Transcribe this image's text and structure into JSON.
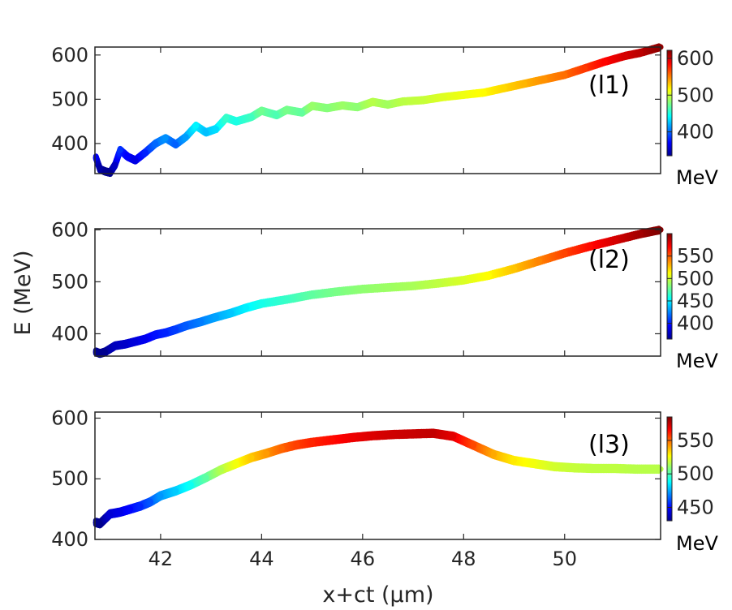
{
  "chart_data": {
    "type": "scatter",
    "xlabel": "x+ct (μm)",
    "ylabel": "E (MeV)",
    "xlim": [
      40.7,
      51.9
    ],
    "xticks": [
      42,
      44,
      46,
      48,
      50
    ],
    "xtick_labels": [
      "42",
      "44",
      "46",
      "48",
      "50"
    ],
    "panels": [
      {
        "label": "(l1)",
        "ylim": [
          332,
          618
        ],
        "yticks": [
          400,
          500,
          600
        ],
        "ytick_labels": [
          "400",
          "500",
          "600"
        ],
        "colorbar": {
          "min": 335,
          "max": 622,
          "ticks": [
            400,
            500,
            600
          ],
          "tick_labels": [
            "400",
            "500",
            "600"
          ],
          "unit": "MeV"
        },
        "x": [
          40.72,
          40.8,
          40.9,
          41.0,
          41.1,
          41.2,
          41.35,
          41.5,
          41.7,
          41.9,
          42.1,
          42.3,
          42.5,
          42.7,
          42.9,
          43.1,
          43.3,
          43.5,
          43.8,
          44.0,
          44.3,
          44.5,
          44.8,
          45.0,
          45.3,
          45.6,
          45.9,
          46.2,
          46.5,
          46.8,
          47.2,
          47.6,
          48.0,
          48.4,
          48.8,
          49.2,
          49.6,
          50.0,
          50.4,
          50.8,
          51.2,
          51.5,
          51.9
        ],
        "y": [
          368,
          342,
          337,
          334,
          352,
          385,
          370,
          362,
          380,
          400,
          412,
          398,
          415,
          440,
          425,
          433,
          458,
          450,
          460,
          474,
          464,
          476,
          470,
          485,
          480,
          486,
          482,
          494,
          488,
          495,
          498,
          505,
          510,
          515,
          525,
          535,
          545,
          555,
          570,
          585,
          598,
          605,
          618
        ]
      },
      {
        "label": "(l2)",
        "ylim": [
          357,
          602
        ],
        "yticks": [
          400,
          500,
          600
        ],
        "ytick_labels": [
          "400",
          "500",
          "600"
        ],
        "colorbar": {
          "min": 365,
          "max": 600,
          "ticks": [
            400,
            450,
            500,
            550
          ],
          "tick_labels": [
            "400",
            "450",
            "500",
            "550"
          ],
          "unit": "MeV"
        },
        "x": [
          40.72,
          40.8,
          40.9,
          41.1,
          41.3,
          41.5,
          41.7,
          41.9,
          42.1,
          42.3,
          42.5,
          42.8,
          43.1,
          43.4,
          43.7,
          44.0,
          44.5,
          45.0,
          45.5,
          46.0,
          46.5,
          47.0,
          47.5,
          48.0,
          48.5,
          49.0,
          49.5,
          50.0,
          50.5,
          51.0,
          51.5,
          51.9
        ],
        "y": [
          365,
          362,
          365,
          377,
          380,
          385,
          390,
          398,
          402,
          408,
          415,
          423,
          432,
          440,
          450,
          458,
          466,
          475,
          481,
          486,
          489,
          492,
          497,
          503,
          512,
          525,
          540,
          555,
          568,
          580,
          592,
          600
        ]
      },
      {
        "label": "(l3)",
        "ylim": [
          400,
          610
        ],
        "yticks": [
          400,
          500,
          600
        ],
        "ytick_labels": [
          "400",
          "500",
          "600"
        ],
        "colorbar": {
          "min": 430,
          "max": 585,
          "ticks": [
            450,
            500,
            550
          ],
          "tick_labels": [
            "450",
            "500",
            "550"
          ],
          "unit": "MeV"
        },
        "x": [
          40.72,
          40.8,
          41.0,
          41.2,
          41.4,
          41.6,
          41.8,
          42.0,
          42.3,
          42.6,
          42.9,
          43.2,
          43.5,
          43.8,
          44.1,
          44.4,
          44.7,
          45.0,
          45.4,
          45.8,
          46.2,
          46.6,
          47.0,
          47.4,
          47.8,
          48.2,
          48.6,
          49.0,
          49.4,
          49.8,
          50.2,
          50.6,
          51.0,
          51.4,
          51.9
        ],
        "y": [
          428,
          426,
          442,
          445,
          450,
          455,
          462,
          472,
          480,
          490,
          502,
          515,
          525,
          535,
          542,
          550,
          556,
          560,
          564,
          568,
          571,
          573,
          574,
          575,
          570,
          555,
          540,
          530,
          525,
          520,
          518,
          517,
          517,
          516,
          516
        ]
      }
    ]
  }
}
